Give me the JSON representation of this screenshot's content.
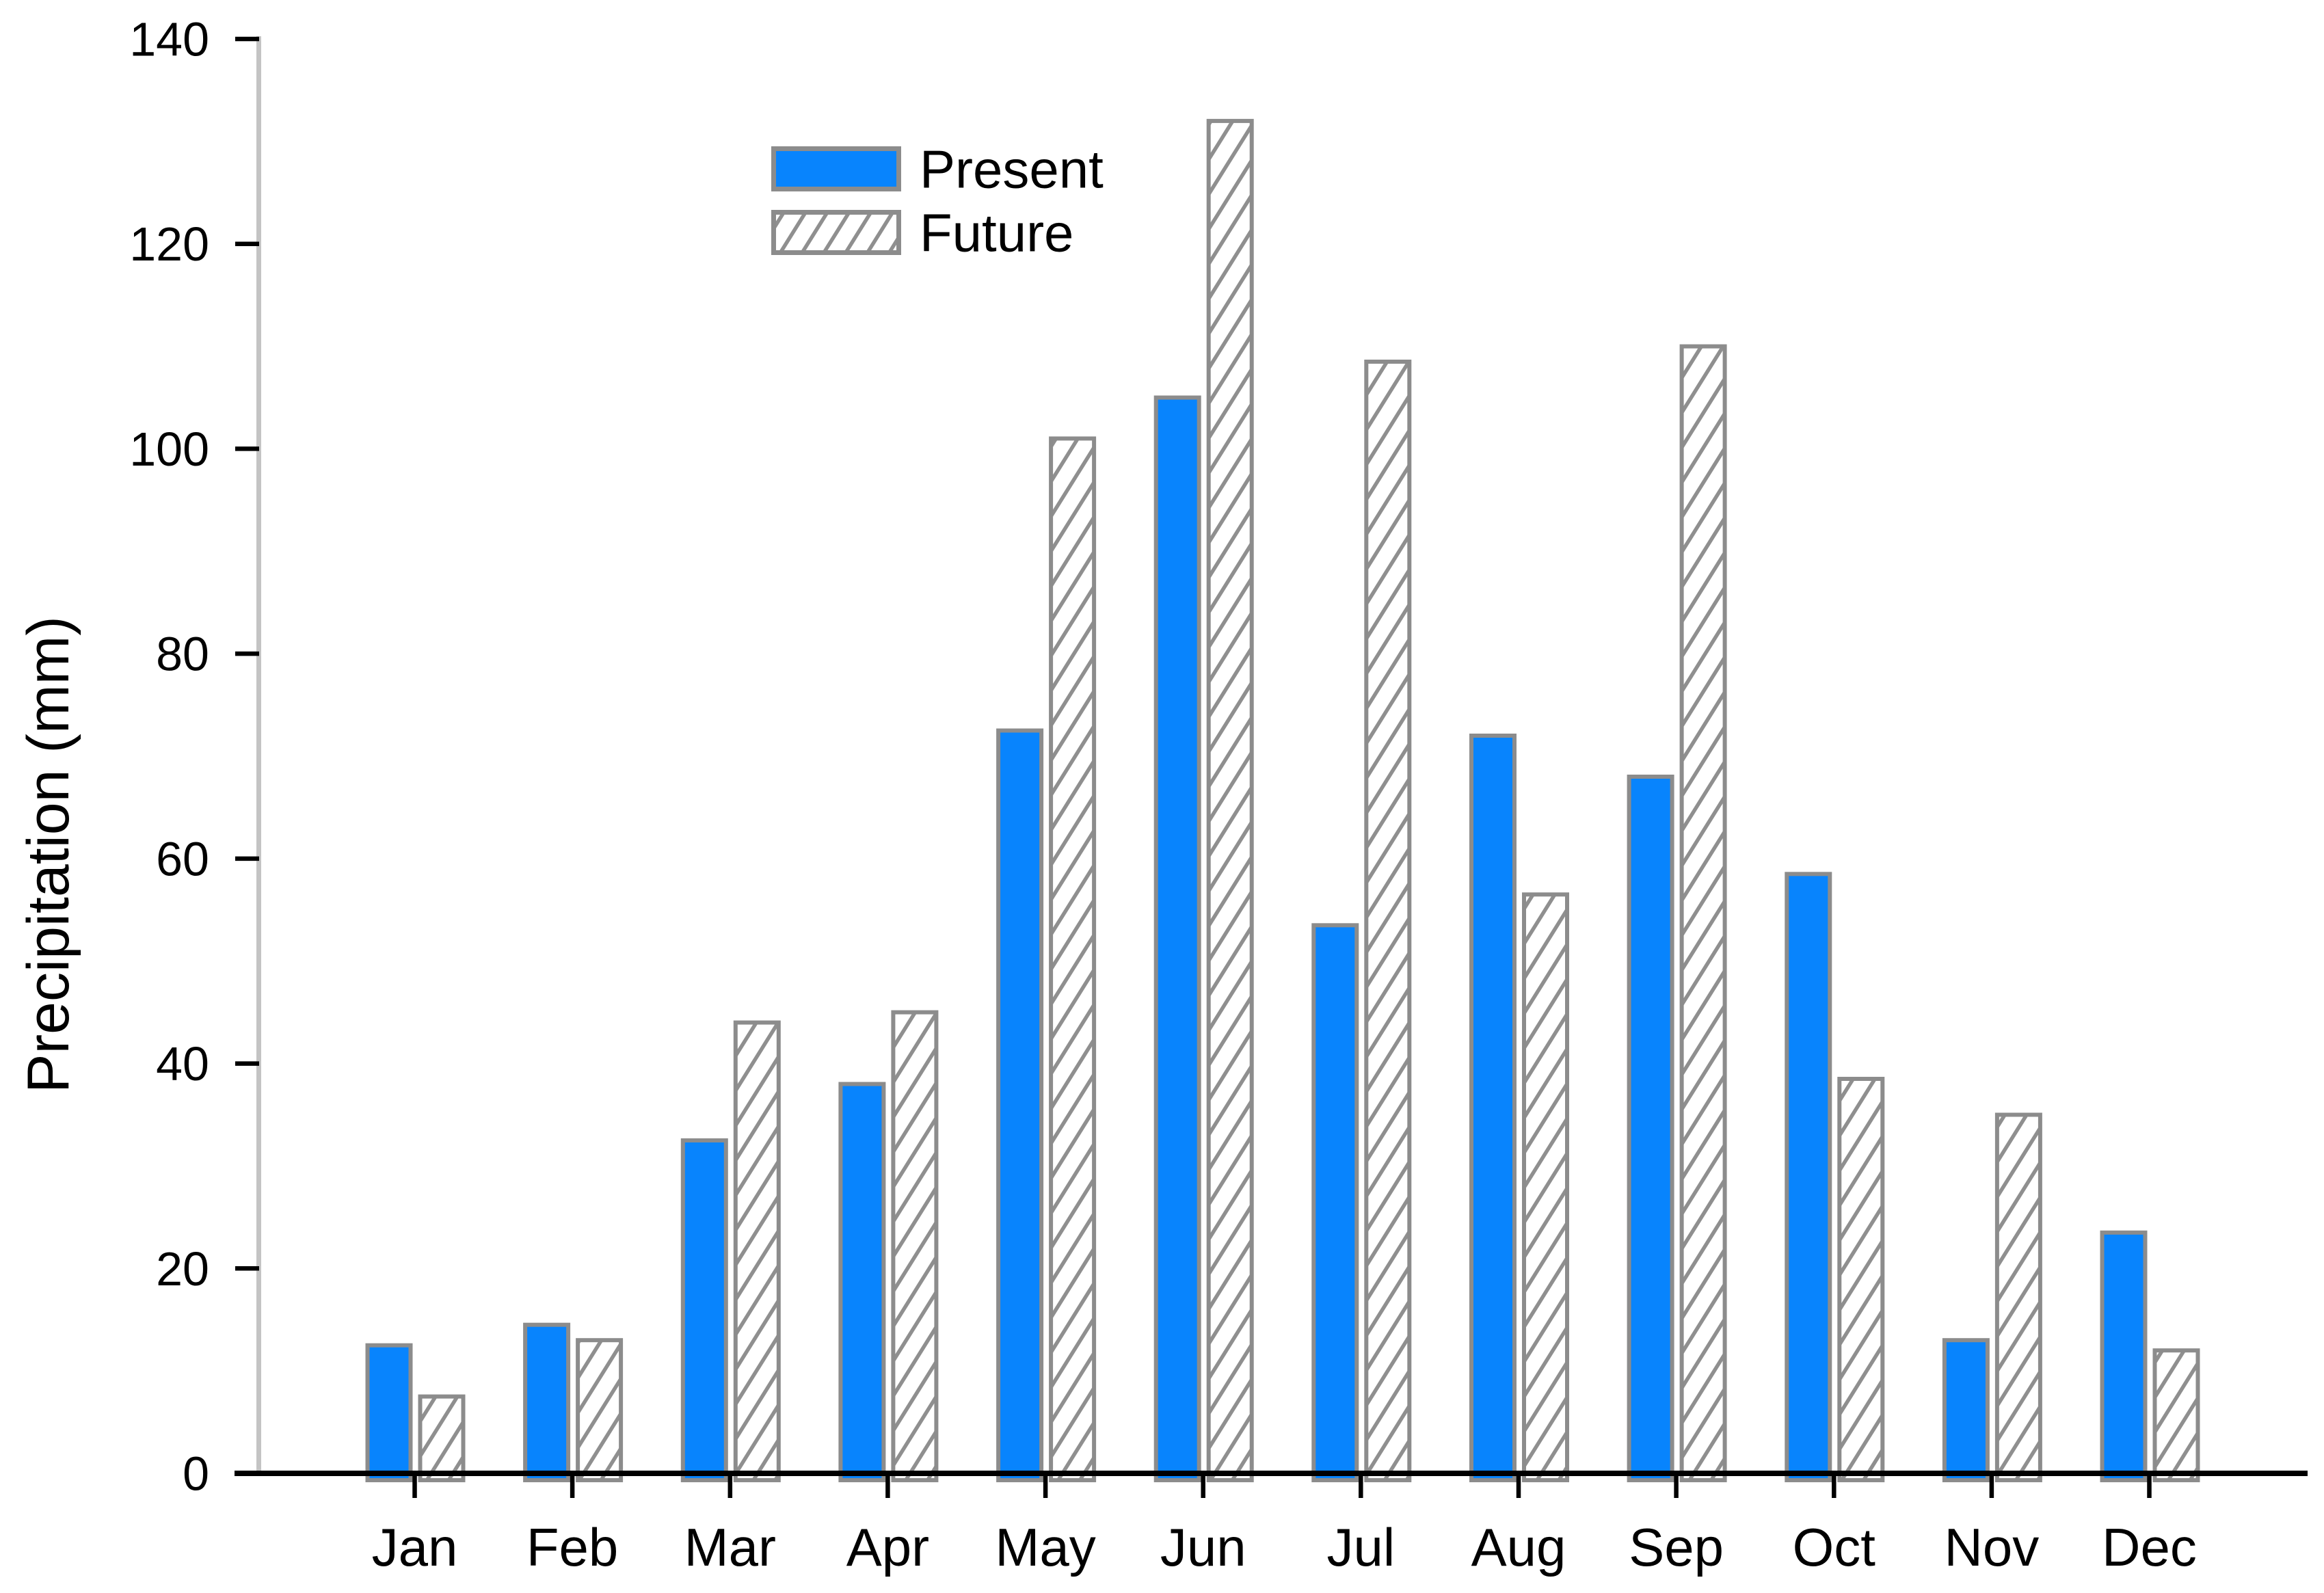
{
  "chart_data": {
    "type": "bar",
    "title": "",
    "xlabel": "",
    "ylabel": "Precipitation (mm)",
    "ylim": [
      0,
      140
    ],
    "ytick_step": 20,
    "ytick_labels": [
      "0",
      "20",
      "40",
      "60",
      "80",
      "100",
      "120",
      "140"
    ],
    "categories": [
      "Jan",
      "Feb",
      "Mar",
      "Apr",
      "May",
      "Jun",
      "Jul",
      "Aug",
      "Sep",
      "Oct",
      "Nov",
      "Dec"
    ],
    "series": [
      {
        "name": "Present",
        "style": "solid",
        "color": "#0884fd",
        "values": [
          12.5,
          14.5,
          32.5,
          38,
          72.5,
          105,
          53.5,
          72,
          68,
          58.5,
          13,
          23.5
        ]
      },
      {
        "name": "Future",
        "style": "hatched",
        "hatch_color": "#8f8f8f",
        "hatch_direction": "forward-slash",
        "values": [
          7.5,
          13,
          44,
          45,
          101,
          132,
          108.5,
          56.5,
          110,
          38.5,
          35,
          12
        ]
      }
    ],
    "bar_outline_color": "#8c8c8c",
    "axis_colors": {
      "y_axis_line": "#c4c4c4",
      "x_axis_line": "#000000",
      "tick_color": "#000000",
      "text_color": "#000000"
    },
    "grid": false,
    "legend_position": "upper-left-inside",
    "background": "#ffffff"
  }
}
